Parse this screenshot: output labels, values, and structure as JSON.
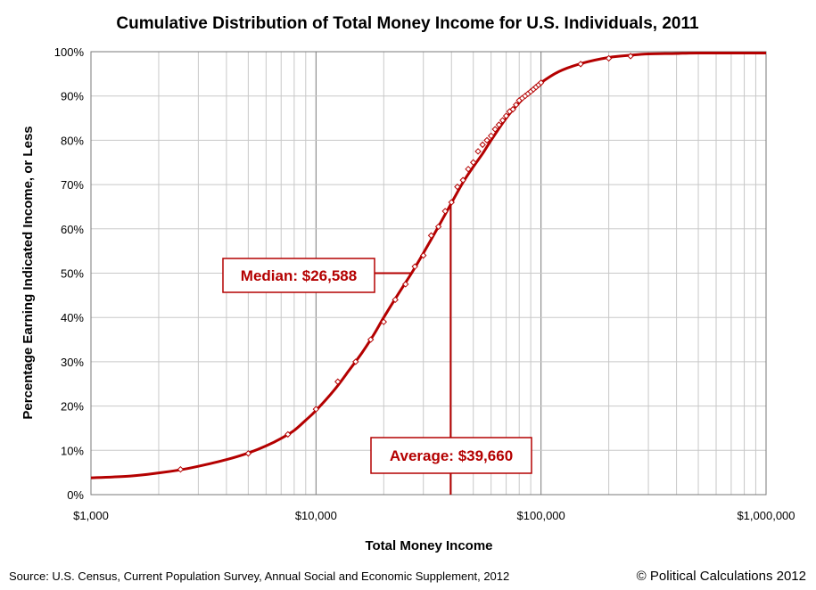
{
  "chart_data": {
    "type": "line",
    "title": "Cumulative Distribution of Total Money Income for U.S. Individuals, 2011",
    "xlabel": "Total Money Income",
    "ylabel": "Percentage Earning Indicated Income, or Less",
    "x_scale": "log",
    "xlim": [
      1000,
      1000000
    ],
    "ylim": [
      0,
      100
    ],
    "x_ticks": [
      1000,
      10000,
      100000,
      1000000
    ],
    "x_tick_labels": [
      "$1,000",
      "$10,000",
      "$100,000",
      "$1,000,000"
    ],
    "y_ticks": [
      0,
      10,
      20,
      30,
      40,
      50,
      60,
      70,
      80,
      90,
      100
    ],
    "y_tick_labels": [
      "0%",
      "10%",
      "20%",
      "30%",
      "40%",
      "50%",
      "60%",
      "70%",
      "80%",
      "90%",
      "100%"
    ],
    "grid": true,
    "colors": {
      "series": "#b40000",
      "grid": "#c8c8c8",
      "grid_major": "#7a7a7a"
    },
    "series": [
      {
        "kind": "curve",
        "x": [
          1000,
          1500,
          2000,
          2500,
          3000,
          4000,
          5000,
          6000,
          7000,
          8000,
          9000,
          10000,
          12000,
          14000,
          16000,
          18000,
          20000,
          23000,
          26588,
          30000,
          35000,
          39660,
          45000,
          50000,
          55000,
          60000,
          70000,
          80000,
          90000,
          100000,
          120000,
          150000,
          200000,
          250000,
          300000,
          400000,
          500000,
          1000000
        ],
        "y": [
          3.8,
          4.2,
          4.9,
          5.6,
          6.4,
          7.9,
          9.4,
          11.0,
          12.7,
          14.5,
          16.8,
          19.0,
          23.5,
          28.0,
          32.0,
          36.0,
          40.0,
          45.0,
          50.0,
          54.5,
          60.5,
          65.5,
          70.5,
          74.0,
          77.0,
          80.0,
          85.0,
          88.5,
          91.0,
          93.0,
          95.5,
          97.3,
          98.7,
          99.2,
          99.5,
          99.6,
          99.7,
          99.7
        ]
      },
      {
        "kind": "markers",
        "x": [
          2500,
          5000,
          7500,
          10000,
          12500,
          15000,
          17500,
          20000,
          22500,
          25000,
          27500,
          30000,
          32500,
          35000,
          37500,
          40000,
          42500,
          45000,
          47500,
          50000,
          52500,
          55000,
          57500,
          60000,
          62500,
          65000,
          67500,
          70000,
          72500,
          75000,
          77500,
          80000,
          82500,
          85000,
          87500,
          90000,
          92500,
          95000,
          97500,
          100000,
          150000,
          200000,
          250000
        ],
        "y": [
          5.7,
          9.3,
          13.6,
          19.3,
          25.5,
          30.0,
          35.0,
          39.0,
          44.0,
          47.5,
          51.5,
          54.0,
          58.5,
          60.5,
          64.0,
          66.0,
          69.5,
          71.0,
          73.5,
          75.0,
          77.5,
          79.0,
          80.0,
          81.0,
          82.5,
          83.5,
          84.5,
          85.5,
          86.5,
          87.0,
          88.0,
          89.0,
          89.5,
          90.0,
          90.5,
          91.0,
          91.5,
          92.0,
          92.5,
          93.0,
          97.2,
          98.5,
          99.0
        ]
      }
    ],
    "annotations": [
      {
        "label": "Median: $26,588",
        "x": 26588,
        "y": 50
      },
      {
        "label": "Average: $39,660",
        "x": 39660,
        "y": 65.5
      }
    ]
  },
  "footer": {
    "source": "Source: U.S. Census, Current Population Survey, Annual Social and Economic Supplement, 2012",
    "credit": "© Political Calculations 2012"
  }
}
